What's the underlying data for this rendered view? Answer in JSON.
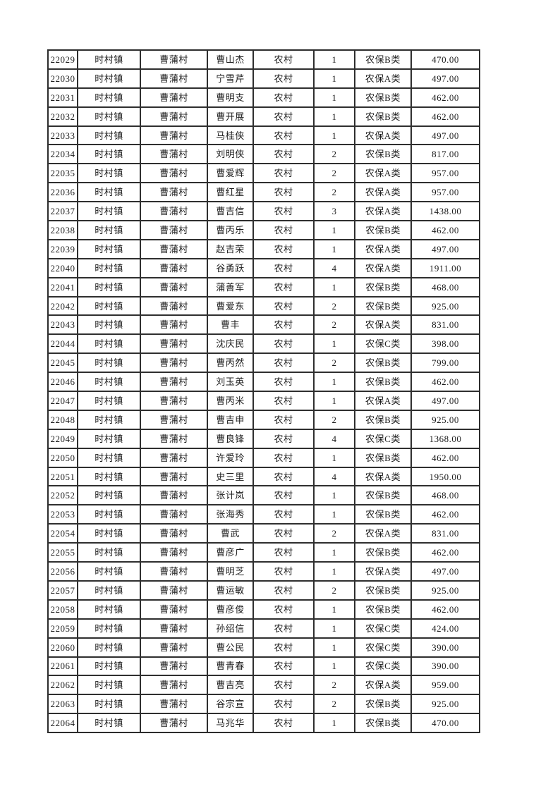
{
  "page": {
    "background_color": "#ffffff",
    "text_color": "#1c1c1c",
    "border_color": "#2f2f2f"
  },
  "table": {
    "rows": [
      [
        "22029",
        "时村镇",
        "曹蒲村",
        "曹山杰",
        "农村",
        "1",
        "农保B类",
        "470.00"
      ],
      [
        "22030",
        "时村镇",
        "曹蒲村",
        "宁雪芹",
        "农村",
        "1",
        "农保A类",
        "497.00"
      ],
      [
        "22031",
        "时村镇",
        "曹蒲村",
        "曹明支",
        "农村",
        "1",
        "农保B类",
        "462.00"
      ],
      [
        "22032",
        "时村镇",
        "曹蒲村",
        "曹开展",
        "农村",
        "1",
        "农保B类",
        "462.00"
      ],
      [
        "22033",
        "时村镇",
        "曹蒲村",
        "马桂侠",
        "农村",
        "1",
        "农保A类",
        "497.00"
      ],
      [
        "22034",
        "时村镇",
        "曹蒲村",
        "刘明侠",
        "农村",
        "2",
        "农保B类",
        "817.00"
      ],
      [
        "22035",
        "时村镇",
        "曹蒲村",
        "曹爱辉",
        "农村",
        "2",
        "农保A类",
        "957.00"
      ],
      [
        "22036",
        "时村镇",
        "曹蒲村",
        "曹红星",
        "农村",
        "2",
        "农保A类",
        "957.00"
      ],
      [
        "22037",
        "时村镇",
        "曹蒲村",
        "曹吉信",
        "农村",
        "3",
        "农保A类",
        "1438.00"
      ],
      [
        "22038",
        "时村镇",
        "曹蒲村",
        "曹丙乐",
        "农村",
        "1",
        "农保B类",
        "462.00"
      ],
      [
        "22039",
        "时村镇",
        "曹蒲村",
        "赵吉荣",
        "农村",
        "1",
        "农保A类",
        "497.00"
      ],
      [
        "22040",
        "时村镇",
        "曹蒲村",
        "谷勇跃",
        "农村",
        "4",
        "农保A类",
        "1911.00"
      ],
      [
        "22041",
        "时村镇",
        "曹蒲村",
        "蒲善军",
        "农村",
        "1",
        "农保B类",
        "468.00"
      ],
      [
        "22042",
        "时村镇",
        "曹蒲村",
        "曹爱东",
        "农村",
        "2",
        "农保B类",
        "925.00"
      ],
      [
        "22043",
        "时村镇",
        "曹蒲村",
        "曹丰",
        "农村",
        "2",
        "农保A类",
        "831.00"
      ],
      [
        "22044",
        "时村镇",
        "曹蒲村",
        "沈庆民",
        "农村",
        "1",
        "农保C类",
        "398.00"
      ],
      [
        "22045",
        "时村镇",
        "曹蒲村",
        "曹丙然",
        "农村",
        "2",
        "农保B类",
        "799.00"
      ],
      [
        "22046",
        "时村镇",
        "曹蒲村",
        "刘玉英",
        "农村",
        "1",
        "农保B类",
        "462.00"
      ],
      [
        "22047",
        "时村镇",
        "曹蒲村",
        "曹丙米",
        "农村",
        "1",
        "农保A类",
        "497.00"
      ],
      [
        "22048",
        "时村镇",
        "曹蒲村",
        "曹吉申",
        "农村",
        "2",
        "农保B类",
        "925.00"
      ],
      [
        "22049",
        "时村镇",
        "曹蒲村",
        "曹良锋",
        "农村",
        "4",
        "农保C类",
        "1368.00"
      ],
      [
        "22050",
        "时村镇",
        "曹蒲村",
        "许爱玲",
        "农村",
        "1",
        "农保B类",
        "462.00"
      ],
      [
        "22051",
        "时村镇",
        "曹蒲村",
        "史三里",
        "农村",
        "4",
        "农保A类",
        "1950.00"
      ],
      [
        "22052",
        "时村镇",
        "曹蒲村",
        "张计岚",
        "农村",
        "1",
        "农保B类",
        "468.00"
      ],
      [
        "22053",
        "时村镇",
        "曹蒲村",
        "张海秀",
        "农村",
        "1",
        "农保B类",
        "462.00"
      ],
      [
        "22054",
        "时村镇",
        "曹蒲村",
        "曹武",
        "农村",
        "2",
        "农保A类",
        "831.00"
      ],
      [
        "22055",
        "时村镇",
        "曹蒲村",
        "曹彦广",
        "农村",
        "1",
        "农保B类",
        "462.00"
      ],
      [
        "22056",
        "时村镇",
        "曹蒲村",
        "曹明芝",
        "农村",
        "1",
        "农保A类",
        "497.00"
      ],
      [
        "22057",
        "时村镇",
        "曹蒲村",
        "曹运敏",
        "农村",
        "2",
        "农保B类",
        "925.00"
      ],
      [
        "22058",
        "时村镇",
        "曹蒲村",
        "曹彦俊",
        "农村",
        "1",
        "农保B类",
        "462.00"
      ],
      [
        "22059",
        "时村镇",
        "曹蒲村",
        "孙绍信",
        "农村",
        "1",
        "农保C类",
        "424.00"
      ],
      [
        "22060",
        "时村镇",
        "曹蒲村",
        "曹公民",
        "农村",
        "1",
        "农保C类",
        "390.00"
      ],
      [
        "22061",
        "时村镇",
        "曹蒲村",
        "曹青春",
        "农村",
        "1",
        "农保C类",
        "390.00"
      ],
      [
        "22062",
        "时村镇",
        "曹蒲村",
        "曹吉亮",
        "农村",
        "2",
        "农保A类",
        "959.00"
      ],
      [
        "22063",
        "时村镇",
        "曹蒲村",
        "谷宗宣",
        "农村",
        "2",
        "农保B类",
        "925.00"
      ],
      [
        "22064",
        "时村镇",
        "曹蒲村",
        "马兆华",
        "农村",
        "1",
        "农保B类",
        "470.00"
      ]
    ]
  }
}
